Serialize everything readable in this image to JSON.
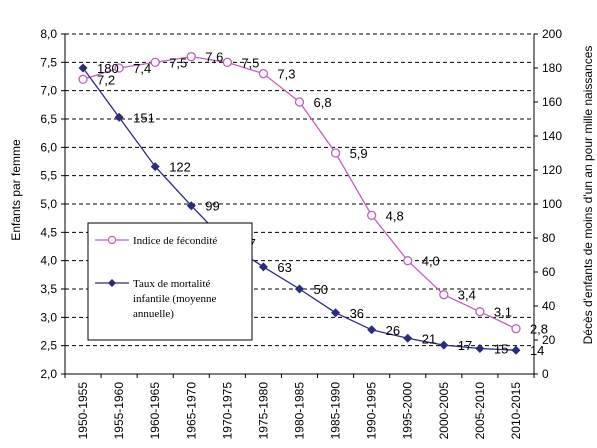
{
  "chart_data": {
    "type": "line",
    "categories": [
      "1950-1955",
      "1955-1960",
      "1960-1965",
      "1965-1970",
      "1970-1975",
      "1975-1980",
      "1980-1985",
      "1985-1990",
      "1990-1995",
      "1995-2000",
      "2000-2005",
      "2005-2010",
      "2010-2015"
    ],
    "y_left": {
      "label": "Enfants par femme",
      "ylim": [
        2.0,
        8.0
      ],
      "ticks": [
        "2,0",
        "2,5",
        "3,0",
        "3,5",
        "4,0",
        "4,5",
        "5,0",
        "5,5",
        "6,0",
        "6,5",
        "7,0",
        "7,5",
        "8,0"
      ]
    },
    "y_right": {
      "label": "Décès d'enfants de moins d'un an pour mille naissances",
      "ylim": [
        0,
        200
      ],
      "ticks": [
        "0",
        "20",
        "40",
        "60",
        "80",
        "100",
        "120",
        "140",
        "160",
        "180",
        "200"
      ]
    },
    "grid": "horizontal dashed",
    "legend_position": "left-center",
    "series": [
      {
        "name": "Indice de fécondité",
        "axis": "left",
        "color": "#c060c0",
        "marker": "open-circle",
        "values": [
          7.2,
          7.4,
          7.5,
          7.6,
          7.5,
          7.3,
          6.8,
          5.9,
          4.8,
          4.0,
          3.4,
          3.1,
          2.8
        ],
        "labels": [
          "7,2",
          "7,4",
          "7,5",
          "7,6",
          "7,5",
          "7,3",
          "6,8",
          "5,9",
          "4,8",
          "4,0",
          "3,4",
          "3,1",
          "2,8"
        ]
      },
      {
        "name": "Taux de mortalité infantile (moyenne annuelle)",
        "legend_lines": [
          "Taux de mortalité",
          "infantile (moyenne",
          "annuelle)"
        ],
        "axis": "right",
        "color": "#2a2a80",
        "marker": "filled-diamond",
        "values": [
          180,
          151,
          122,
          99,
          77,
          63,
          50,
          36,
          26,
          21,
          17,
          15,
          14
        ],
        "labels": [
          "180",
          "151",
          "122",
          "99",
          "77",
          "63",
          "50",
          "36",
          "26",
          "21",
          "17",
          "15",
          "14"
        ]
      }
    ]
  }
}
